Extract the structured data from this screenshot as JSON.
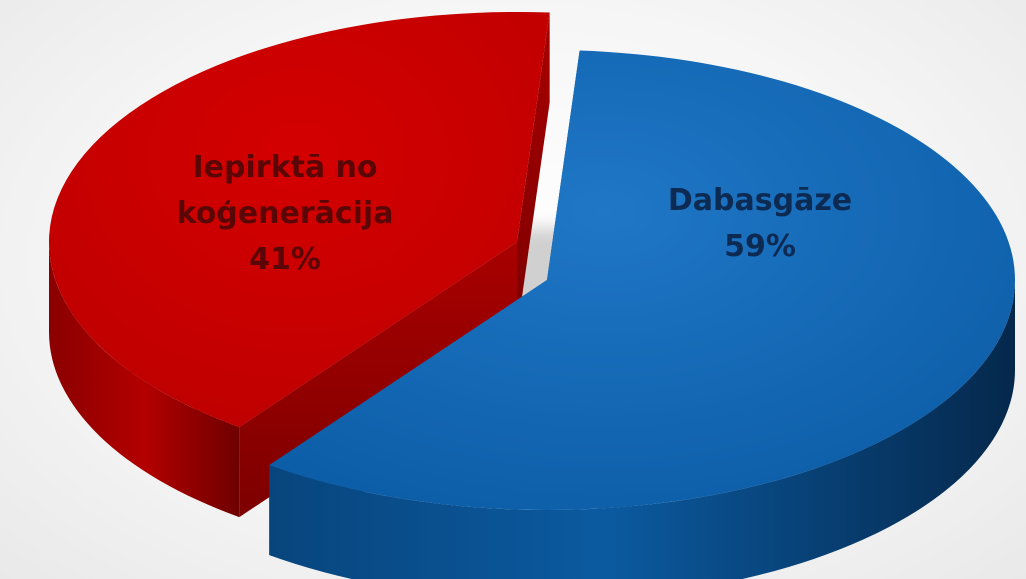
{
  "chart_data": {
    "type": "pie",
    "style": "3d-exploded",
    "slices": [
      {
        "label_lines": [
          "Dabasgāze",
          "59%"
        ],
        "value": 59,
        "color": "#0a5ea8",
        "label_color": "#0d2a52"
      },
      {
        "label_lines": [
          "Iepirktā no",
          "koģenerācija",
          "41%"
        ],
        "value": 41,
        "color": "#c20000",
        "label_color": "#5a0606"
      }
    ]
  }
}
